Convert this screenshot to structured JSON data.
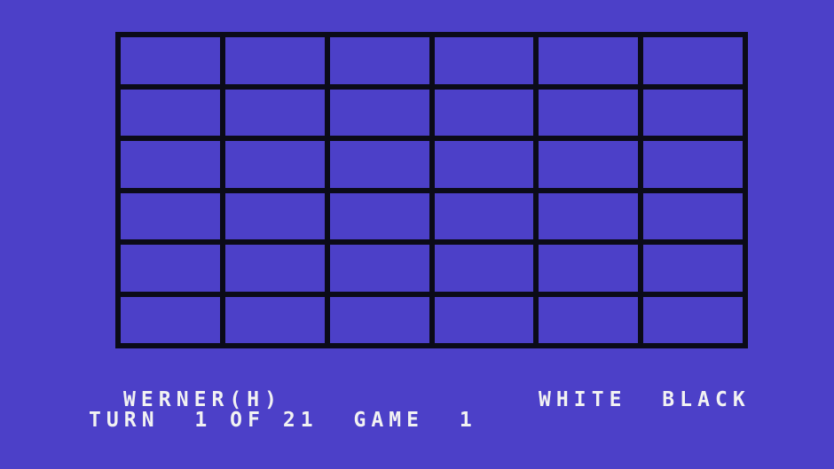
{
  "colors": {
    "background": "#4c40c8",
    "grid_line": "#0b0b18",
    "text": "#f2f2f2"
  },
  "board": {
    "rows": 6,
    "columns": 6
  },
  "status": {
    "player_name": "WERNER(H)",
    "turn_line": "TURN  1 OF 21  GAME  1",
    "turn_label": "TURN",
    "turn_number": "1",
    "turns_total": "21",
    "game_label": "GAME",
    "game_number": "1",
    "score_header": "WHITE  BLACK",
    "white_label": "WHITE",
    "black_label": "BLACK"
  }
}
